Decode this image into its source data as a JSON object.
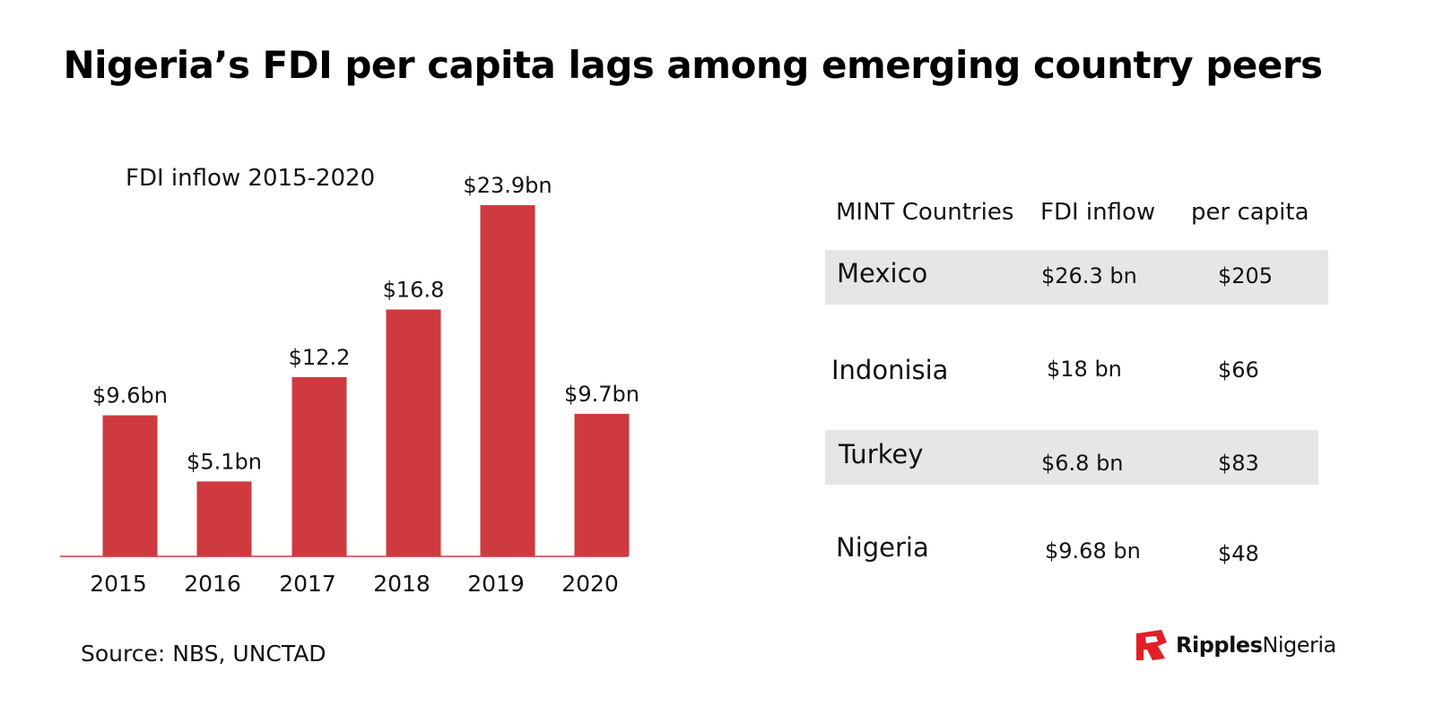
{
  "title": "Nigeria’s FDI per capita lags among emerging country peers",
  "colors": {
    "bar": "#cf3a3f",
    "row_shade": "#e6e6e6",
    "logo_red": "#e41e26"
  },
  "chart_data": {
    "type": "bar",
    "title": "FDI inflow 2015-2020",
    "categories": [
      "2015",
      "2016",
      "2017",
      "2018",
      "2019",
      "2020"
    ],
    "values": [
      9.6,
      5.1,
      12.2,
      16.8,
      23.9,
      9.7
    ],
    "data_labels": [
      "$9.6bn",
      "$5.1bn",
      "$12.2",
      "$16.8",
      "$23.9bn",
      "$9.7bn"
    ],
    "unit": "bn USD",
    "ylim": [
      0,
      24
    ],
    "grid": false,
    "legend": "none"
  },
  "table": {
    "headers": [
      "MINT Countries",
      "FDI inflow",
      "per capita"
    ],
    "rows": [
      {
        "country": "Mexico",
        "fdi": "$26.3 bn",
        "per_capita": "$205",
        "shaded": true
      },
      {
        "country": "Indonisia",
        "fdi": "$18 bn",
        "per_capita": "$66",
        "shaded": false
      },
      {
        "country": "Turkey",
        "fdi": "$6.8 bn",
        "per_capita": "$83",
        "shaded": true
      },
      {
        "country": "Nigeria",
        "fdi": "$9.68 bn",
        "per_capita": "$48",
        "shaded": false
      }
    ]
  },
  "source": "Source: NBS, UNCTAD",
  "logo": {
    "bold": "Ripples",
    "regular": "Nigeria",
    "icon": "ripples-r-logo-icon"
  }
}
